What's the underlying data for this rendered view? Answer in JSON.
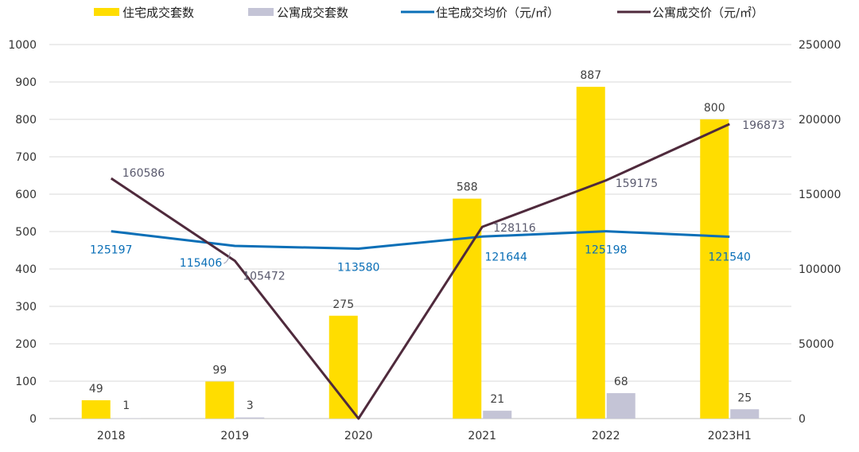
{
  "chart_data": {
    "type": "bar+line",
    "categories": [
      "2018",
      "2019",
      "2020",
      "2021",
      "2022",
      "2023H1"
    ],
    "left_axis": {
      "min": 0,
      "max": 1000,
      "step": 100,
      "ticks": [
        "0",
        "100",
        "200",
        "300",
        "400",
        "500",
        "600",
        "700",
        "800",
        "900",
        "1000"
      ]
    },
    "right_axis": {
      "min": 0,
      "max": 250000,
      "step": 50000,
      "ticks": [
        "0",
        "50000",
        "100000",
        "150000",
        "200000",
        "250000"
      ]
    },
    "series": [
      {
        "name": "住宅成交套数",
        "type": "bar",
        "axis": "left",
        "color": "#FFDD00",
        "values": [
          49,
          99,
          275,
          588,
          887,
          800
        ],
        "labels": [
          "49",
          "99",
          "275",
          "588",
          "887",
          "800"
        ]
      },
      {
        "name": "公寓成交套数",
        "type": "bar",
        "axis": "left",
        "color": "#C4C4D6",
        "values": [
          1,
          3,
          0,
          21,
          68,
          25
        ],
        "labels": [
          "1",
          "3",
          "",
          "21",
          "68",
          "25"
        ]
      },
      {
        "name": "住宅成交均价（元/㎡）",
        "type": "line",
        "axis": "right",
        "color": "#0A6FB7",
        "values": [
          125197,
          115406,
          113580,
          121644,
          125198,
          121540
        ],
        "labels": [
          "125197",
          "115406",
          "113580",
          "121644",
          "125198",
          "121540"
        ]
      },
      {
        "name": "公寓成交价（元/㎡）",
        "type": "line",
        "axis": "right",
        "color": "#4F2A3C",
        "values": [
          160586,
          105472,
          0,
          128116,
          159175,
          196873
        ],
        "labels": [
          "160586",
          "105472",
          "",
          "128116",
          "159175",
          "196873"
        ]
      }
    ],
    "legend_position": "top",
    "grid": true
  }
}
